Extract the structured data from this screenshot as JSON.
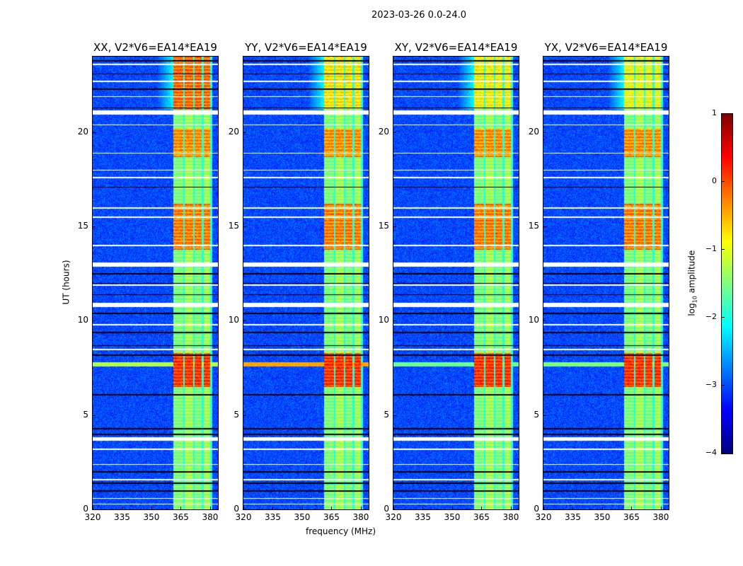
{
  "figure_title": "2023-03-26 0.0-24.0",
  "chart_data": {
    "type": "heatmap",
    "xlabel": "frequency (MHz)",
    "ylabel": "UT (hours)",
    "xlim": [
      320,
      384
    ],
    "ylim": [
      0,
      24
    ],
    "x_ticks": [
      "320",
      "335",
      "350",
      "365",
      "380"
    ],
    "x_tick_values": [
      320,
      335,
      350,
      365,
      380
    ],
    "y_ticks": [
      "0",
      "5",
      "10",
      "15",
      "20"
    ],
    "y_tick_values": [
      0,
      5,
      10,
      15,
      20
    ],
    "panels": [
      {
        "title": "XX, V2*V6=EA14*EA19",
        "late_band_level": 0.0,
        "line_7_7_level": -1.2
      },
      {
        "title": "YY, V2*V6=EA14*EA19",
        "late_band_level": -0.7,
        "line_7_7_level": -0.3
      },
      {
        "title": "XY, V2*V6=EA14*EA19",
        "late_band_level": -0.8,
        "line_7_7_level": -1.6
      },
      {
        "title": "YX, V2*V6=EA14*EA19",
        "late_band_level": -0.9,
        "line_7_7_level": -1.5
      }
    ],
    "rfi_subbands_mhz": [
      [
        361,
        366
      ],
      [
        367,
        371
      ],
      [
        372,
        375.5
      ],
      [
        376.5,
        380
      ]
    ],
    "background_level": -3.2,
    "in_band_level": -1.5,
    "strong_rfi_intervals_hours": [
      {
        "range": [
          6.5,
          8.3
        ],
        "level": 0.3
      },
      {
        "range": [
          13.8,
          16.2
        ],
        "level": -0.1
      },
      {
        "range": [
          18.7,
          20.2
        ],
        "level": -0.2
      },
      {
        "range": [
          21.2,
          24.0
        ],
        "level": -0.3
      }
    ],
    "flagged_wide_rows_hours": [
      3.75,
      10.85,
      13.0,
      21.05
    ],
    "flagged_thin_rows_hours": [
      0.3,
      0.6,
      1.6,
      2.4,
      3.2,
      8.5,
      9.8,
      11.9,
      14.0,
      15.5,
      16.0,
      17.6,
      18.0,
      18.9,
      20.4,
      21.9,
      22.7,
      23.6
    ],
    "black_rows_hours": [
      1.0,
      1.4,
      2.0,
      4.0,
      4.3,
      6.1,
      8.2,
      8.7,
      9.4,
      10.4,
      11.4,
      12.0,
      12.5,
      17.1,
      21.3,
      22.3,
      23.1,
      23.8
    ],
    "colorbar": {
      "label": "log10 amplitude",
      "label_main": "log",
      "label_sub": "10",
      "label_rest": " amplitude",
      "range": [
        -4,
        1
      ],
      "ticks": [
        "1",
        "0",
        "−1",
        "−2",
        "−3",
        "−4"
      ],
      "tick_values": [
        1,
        0,
        -1,
        -2,
        -3,
        -4
      ],
      "colormap": "jet"
    }
  }
}
